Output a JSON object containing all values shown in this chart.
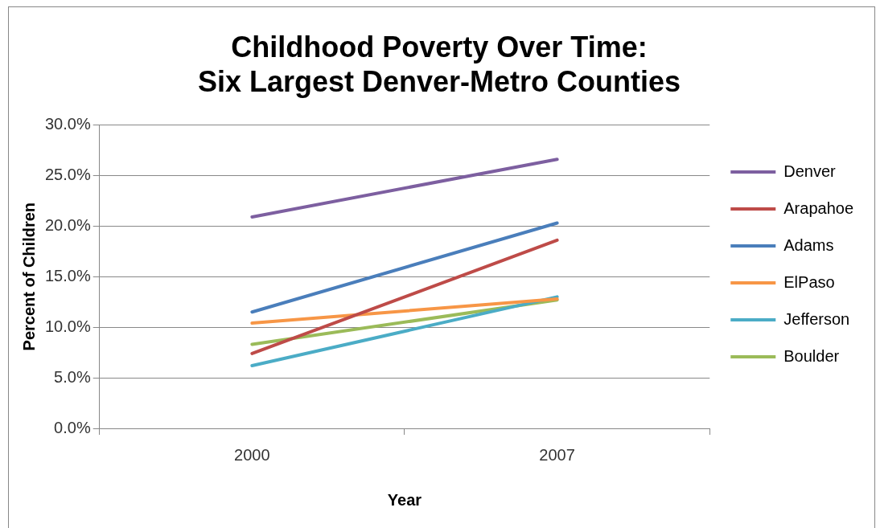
{
  "chart_data": {
    "type": "line",
    "title": "Childhood Poverty Over Time:\nSix Largest Denver-Metro Counties",
    "xlabel": "Year",
    "ylabel": "Percent of Children",
    "categories": [
      "2000",
      "2007"
    ],
    "series": [
      {
        "name": "Denver",
        "color": "#7d5fa0",
        "values": [
          20.9,
          26.6
        ]
      },
      {
        "name": "Arapahoe",
        "color": "#be4b48",
        "values": [
          7.4,
          18.6
        ]
      },
      {
        "name": "Adams",
        "color": "#4a7ebb",
        "values": [
          11.5,
          20.3
        ]
      },
      {
        "name": "ElPaso",
        "color": "#f79646",
        "values": [
          10.4,
          12.8
        ]
      },
      {
        "name": "Jefferson",
        "color": "#4bacc6",
        "values": [
          6.2,
          13.0
        ]
      },
      {
        "name": "Boulder",
        "color": "#9bbb59",
        "values": [
          8.3,
          12.7
        ]
      }
    ],
    "ylim": [
      0,
      30
    ],
    "yticks": [
      {
        "value": 0,
        "label": "0.0%"
      },
      {
        "value": 5,
        "label": "5.0%"
      },
      {
        "value": 10,
        "label": "10.0%"
      },
      {
        "value": 15,
        "label": "15.0%"
      },
      {
        "value": 20,
        "label": "20.0%"
      },
      {
        "value": 25,
        "label": "25.0%"
      },
      {
        "value": 30,
        "label": "30.0%"
      }
    ],
    "grid": "y",
    "legend": "right",
    "marker": "none",
    "line_style": "solid"
  }
}
